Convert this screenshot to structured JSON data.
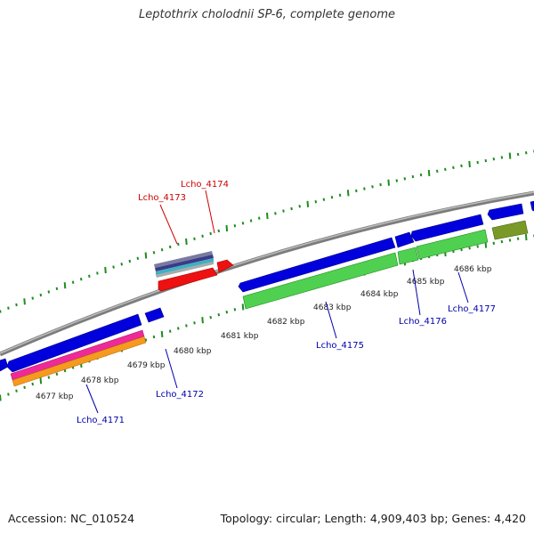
{
  "title": "Leptothrix cholodnii SP-6, complete genome",
  "footer": {
    "accession": "Accession: NC_010524",
    "summary": "Topology: circular; Length: 4,909,403 bp; Genes: 4,420"
  },
  "colors": {
    "backbone": "#8c8c8c",
    "ticks": "#1e8c1e",
    "cds": "#0000dd",
    "rrna": "#ff0000",
    "trna": "#40b0b0",
    "cog_green": "#50d050",
    "cog_pink": "#ee2a9a",
    "cog_orange": "#f59a1f",
    "cog_olive": "#7a9a28",
    "label_forward": "#cc0000",
    "label_reverse": "#0000aa"
  },
  "scale_labels": [
    "4677 kbp",
    "4678 kbp",
    "4679 kbp",
    "4680 kbp",
    "4681 kbp",
    "4682 kbp",
    "4683 kbp",
    "4684 kbp",
    "4685 kbp",
    "4686 kbp"
  ],
  "genes": [
    {
      "name": "Lcho_4173",
      "strand": "forward",
      "type": "rRNA"
    },
    {
      "name": "Lcho_4174",
      "strand": "forward",
      "type": "tRNA"
    },
    {
      "name": "Lcho_4171",
      "strand": "reverse",
      "type": "CDS"
    },
    {
      "name": "Lcho_4172",
      "strand": "reverse",
      "type": "CDS"
    },
    {
      "name": "Lcho_4175",
      "strand": "reverse",
      "type": "CDS"
    },
    {
      "name": "Lcho_4176",
      "strand": "reverse",
      "type": "CDS"
    },
    {
      "name": "Lcho_4177",
      "strand": "reverse",
      "type": "CDS"
    }
  ]
}
